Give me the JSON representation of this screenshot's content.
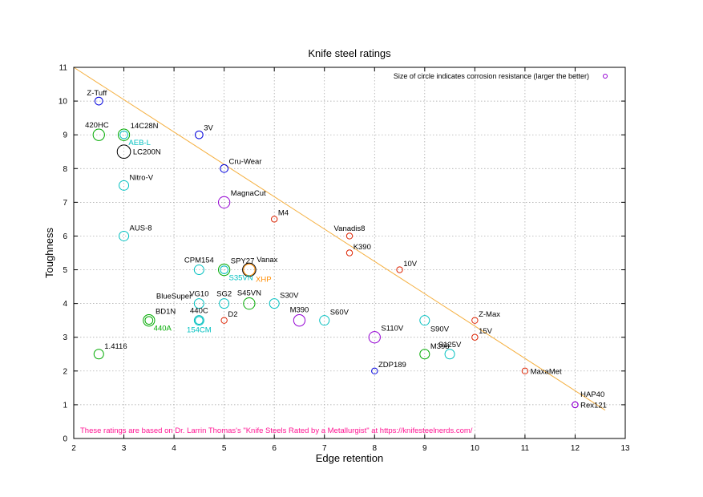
{
  "chart_data": {
    "type": "scatter",
    "title": "Knife steel ratings",
    "xlabel": "Edge retention",
    "ylabel": "Toughness",
    "xlim": [
      2,
      13
    ],
    "ylim": [
      0,
      11
    ],
    "xticks": [
      "2",
      "3",
      "4",
      "5",
      "6",
      "7",
      "8",
      "9",
      "10",
      "11",
      "12",
      "13"
    ],
    "yticks": [
      "0",
      "1",
      "2",
      "3",
      "4",
      "5",
      "6",
      "7",
      "8",
      "9",
      "10",
      "11"
    ],
    "grid": true,
    "legend": {
      "text": "Size of circle indicates corrosion resistance (larger the better)",
      "position": "top-right",
      "color": "#9400d3"
    },
    "trend_line": {
      "x": [
        2,
        12.6
      ],
      "y": [
        11,
        0.84
      ],
      "color": "#f5b041"
    },
    "footnote": {
      "text": "These ratings are based on Dr. Larrin Thomas's \"Knife Steels Rated by a Metallurgist\" at https://knifesteelnerds.com/",
      "color": "#ff1493"
    },
    "points": [
      {
        "x": 2.5,
        "y": 10,
        "size": 3,
        "color": "#0000dd",
        "label": "Z-Tuff",
        "label_color": "#000000",
        "anchor": "nw"
      },
      {
        "x": 2.5,
        "y": 9,
        "size": 5,
        "color": "#00aa00",
        "label": "420HC",
        "label_color": "#000000",
        "anchor": "nw"
      },
      {
        "x": 3,
        "y": 9,
        "size": 5,
        "color": "#00aa00",
        "label": "14C28N",
        "label_color": "#000000",
        "anchor": "ne"
      },
      {
        "x": 3,
        "y": 9,
        "size": 3,
        "color": "#00c0c0",
        "label": "AEB-L",
        "label_color": "#00c0c0",
        "anchor": "se"
      },
      {
        "x": 3,
        "y": 8.5,
        "size": 6,
        "color": "#000000",
        "label": "LC200N",
        "label_color": "#000000",
        "anchor": "e"
      },
      {
        "x": 3,
        "y": 7.5,
        "size": 4,
        "color": "#00c0c0",
        "label": "Nitro-V",
        "label_color": "#000000",
        "anchor": "ne"
      },
      {
        "x": 3,
        "y": 6,
        "size": 4,
        "color": "#00c0c0",
        "label": "AUS-8",
        "label_color": "#000000",
        "anchor": "ne"
      },
      {
        "x": 4.5,
        "y": 9,
        "size": 3,
        "color": "#0000dd",
        "label": "3V",
        "label_color": "#000000",
        "anchor": "ne"
      },
      {
        "x": 5,
        "y": 8,
        "size": 3,
        "color": "#0000dd",
        "label": "Cru-Wear",
        "label_color": "#000000",
        "anchor": "ne"
      },
      {
        "x": 5,
        "y": 7,
        "size": 5,
        "color": "#9400d3",
        "label": "MagnaCut",
        "label_color": "#000000",
        "anchor": "ne"
      },
      {
        "x": 6,
        "y": 6.5,
        "size": 2,
        "color": "#dd2200",
        "label": "M4",
        "label_color": "#000000",
        "anchor": "ne"
      },
      {
        "x": 7.5,
        "y": 6,
        "size": 2,
        "color": "#dd2200",
        "label": "Vanadis8",
        "label_color": "#000000",
        "anchor": "n"
      },
      {
        "x": 7.5,
        "y": 5.5,
        "size": 2,
        "color": "#dd2200",
        "label": "K390",
        "label_color": "#000000",
        "anchor": "ne"
      },
      {
        "x": 8.5,
        "y": 5,
        "size": 2,
        "color": "#dd2200",
        "label": "10V",
        "label_color": "#000000",
        "anchor": "ne"
      },
      {
        "x": 4.5,
        "y": 5,
        "size": 4,
        "color": "#00c0c0",
        "label": "CPM154",
        "label_color": "#000000",
        "anchor": "n"
      },
      {
        "x": 5,
        "y": 5,
        "size": 5,
        "color": "#00aa00",
        "label": "SPY27",
        "label_color": "#000000",
        "anchor": "ne"
      },
      {
        "x": 5,
        "y": 5,
        "size": 3,
        "color": "#00c0c0",
        "label": "S35VN",
        "label_color": "#00c0c0",
        "anchor": "se"
      },
      {
        "x": 5.5,
        "y": 5,
        "size": 6,
        "color": "#000000",
        "label": "Vanax",
        "label_color": "#000000",
        "anchor": "ne"
      },
      {
        "x": 5.5,
        "y": 5,
        "size": 5,
        "color": "#ff8c00",
        "label": "XHP",
        "label_color": "#ff8c00",
        "anchor": "se"
      },
      {
        "x": 4,
        "y": 4,
        "size": 0,
        "color": "#0000dd",
        "label": "BlueSuper",
        "label_color": "#000000",
        "anchor": "n"
      },
      {
        "x": 4.5,
        "y": 4,
        "size": 4,
        "color": "#00c0c0",
        "label": "VG10",
        "label_color": "#000000",
        "anchor": "n"
      },
      {
        "x": 5,
        "y": 4,
        "size": 4,
        "color": "#00c0c0",
        "label": "SG2",
        "label_color": "#000000",
        "anchor": "n"
      },
      {
        "x": 5.5,
        "y": 4,
        "size": 5,
        "color": "#00aa00",
        "label": "S45VN",
        "label_color": "#000000",
        "anchor": "n"
      },
      {
        "x": 6,
        "y": 4,
        "size": 4,
        "color": "#00c0c0",
        "label": "S30V",
        "label_color": "#000000",
        "anchor": "ne"
      },
      {
        "x": 3.5,
        "y": 3.5,
        "size": 5,
        "color": "#00aa00",
        "label": "BD1N",
        "label_color": "#000000",
        "anchor": "ne"
      },
      {
        "x": 3.5,
        "y": 3.5,
        "size": 3,
        "color": "#00aa00",
        "label": "440A",
        "label_color": "#00aa00",
        "anchor": "se"
      },
      {
        "x": 4.5,
        "y": 3.5,
        "size": 4,
        "color": "#00c0c0",
        "label": "440C",
        "label_color": "#000000",
        "anchor": "n"
      },
      {
        "x": 4.5,
        "y": 3.5,
        "size": 3,
        "color": "#00c0c0",
        "label": "154CM",
        "label_color": "#00c0c0",
        "anchor": "s"
      },
      {
        "x": 5,
        "y": 3.5,
        "size": 2,
        "color": "#dd2200",
        "label": "D2",
        "label_color": "#000000",
        "anchor": "ne"
      },
      {
        "x": 6.5,
        "y": 3.5,
        "size": 5,
        "color": "#9400d3",
        "label": "M390",
        "label_color": "#000000",
        "anchor": "n"
      },
      {
        "x": 7,
        "y": 3.5,
        "size": 4,
        "color": "#00c0c0",
        "label": "S60V",
        "label_color": "#000000",
        "anchor": "ne"
      },
      {
        "x": 8,
        "y": 3,
        "size": 5,
        "color": "#9400d3",
        "label": "S110V",
        "label_color": "#000000",
        "anchor": "ne"
      },
      {
        "x": 9,
        "y": 3.5,
        "size": 4,
        "color": "#00c0c0",
        "label": "S90V",
        "label_color": "#000000",
        "anchor": "se"
      },
      {
        "x": 10,
        "y": 3.5,
        "size": 2,
        "color": "#dd2200",
        "label": "Z-Max",
        "label_color": "#000000",
        "anchor": "ne"
      },
      {
        "x": 10,
        "y": 3,
        "size": 2,
        "color": "#dd2200",
        "label": "15V",
        "label_color": "#000000",
        "anchor": "ne"
      },
      {
        "x": 9,
        "y": 2.5,
        "size": 4,
        "color": "#00aa00",
        "label": "M398",
        "label_color": "#000000",
        "anchor": "ne"
      },
      {
        "x": 9.5,
        "y": 2.5,
        "size": 4,
        "color": "#00c0c0",
        "label": "S125V",
        "label_color": "#000000",
        "anchor": "n"
      },
      {
        "x": 2.5,
        "y": 2.5,
        "size": 4,
        "color": "#00aa00",
        "label": "1.4116",
        "label_color": "#000000",
        "anchor": "ne"
      },
      {
        "x": 8,
        "y": 2,
        "size": 2,
        "color": "#0000dd",
        "label": "ZDP189",
        "label_color": "#000000",
        "anchor": "ne"
      },
      {
        "x": 11,
        "y": 2,
        "size": 2,
        "color": "#dd2200",
        "label": "MaxaMet",
        "label_color": "#000000",
        "anchor": "e"
      },
      {
        "x": 12,
        "y": 1,
        "size": 2,
        "color": "#9400d3",
        "label": "HAP40",
        "label_color": "#000000",
        "anchor": "ne2"
      },
      {
        "x": 12,
        "y": 1,
        "size": 2,
        "color": "#9400d3",
        "label": "Rex121",
        "label_color": "#000000",
        "anchor": "e"
      }
    ]
  }
}
